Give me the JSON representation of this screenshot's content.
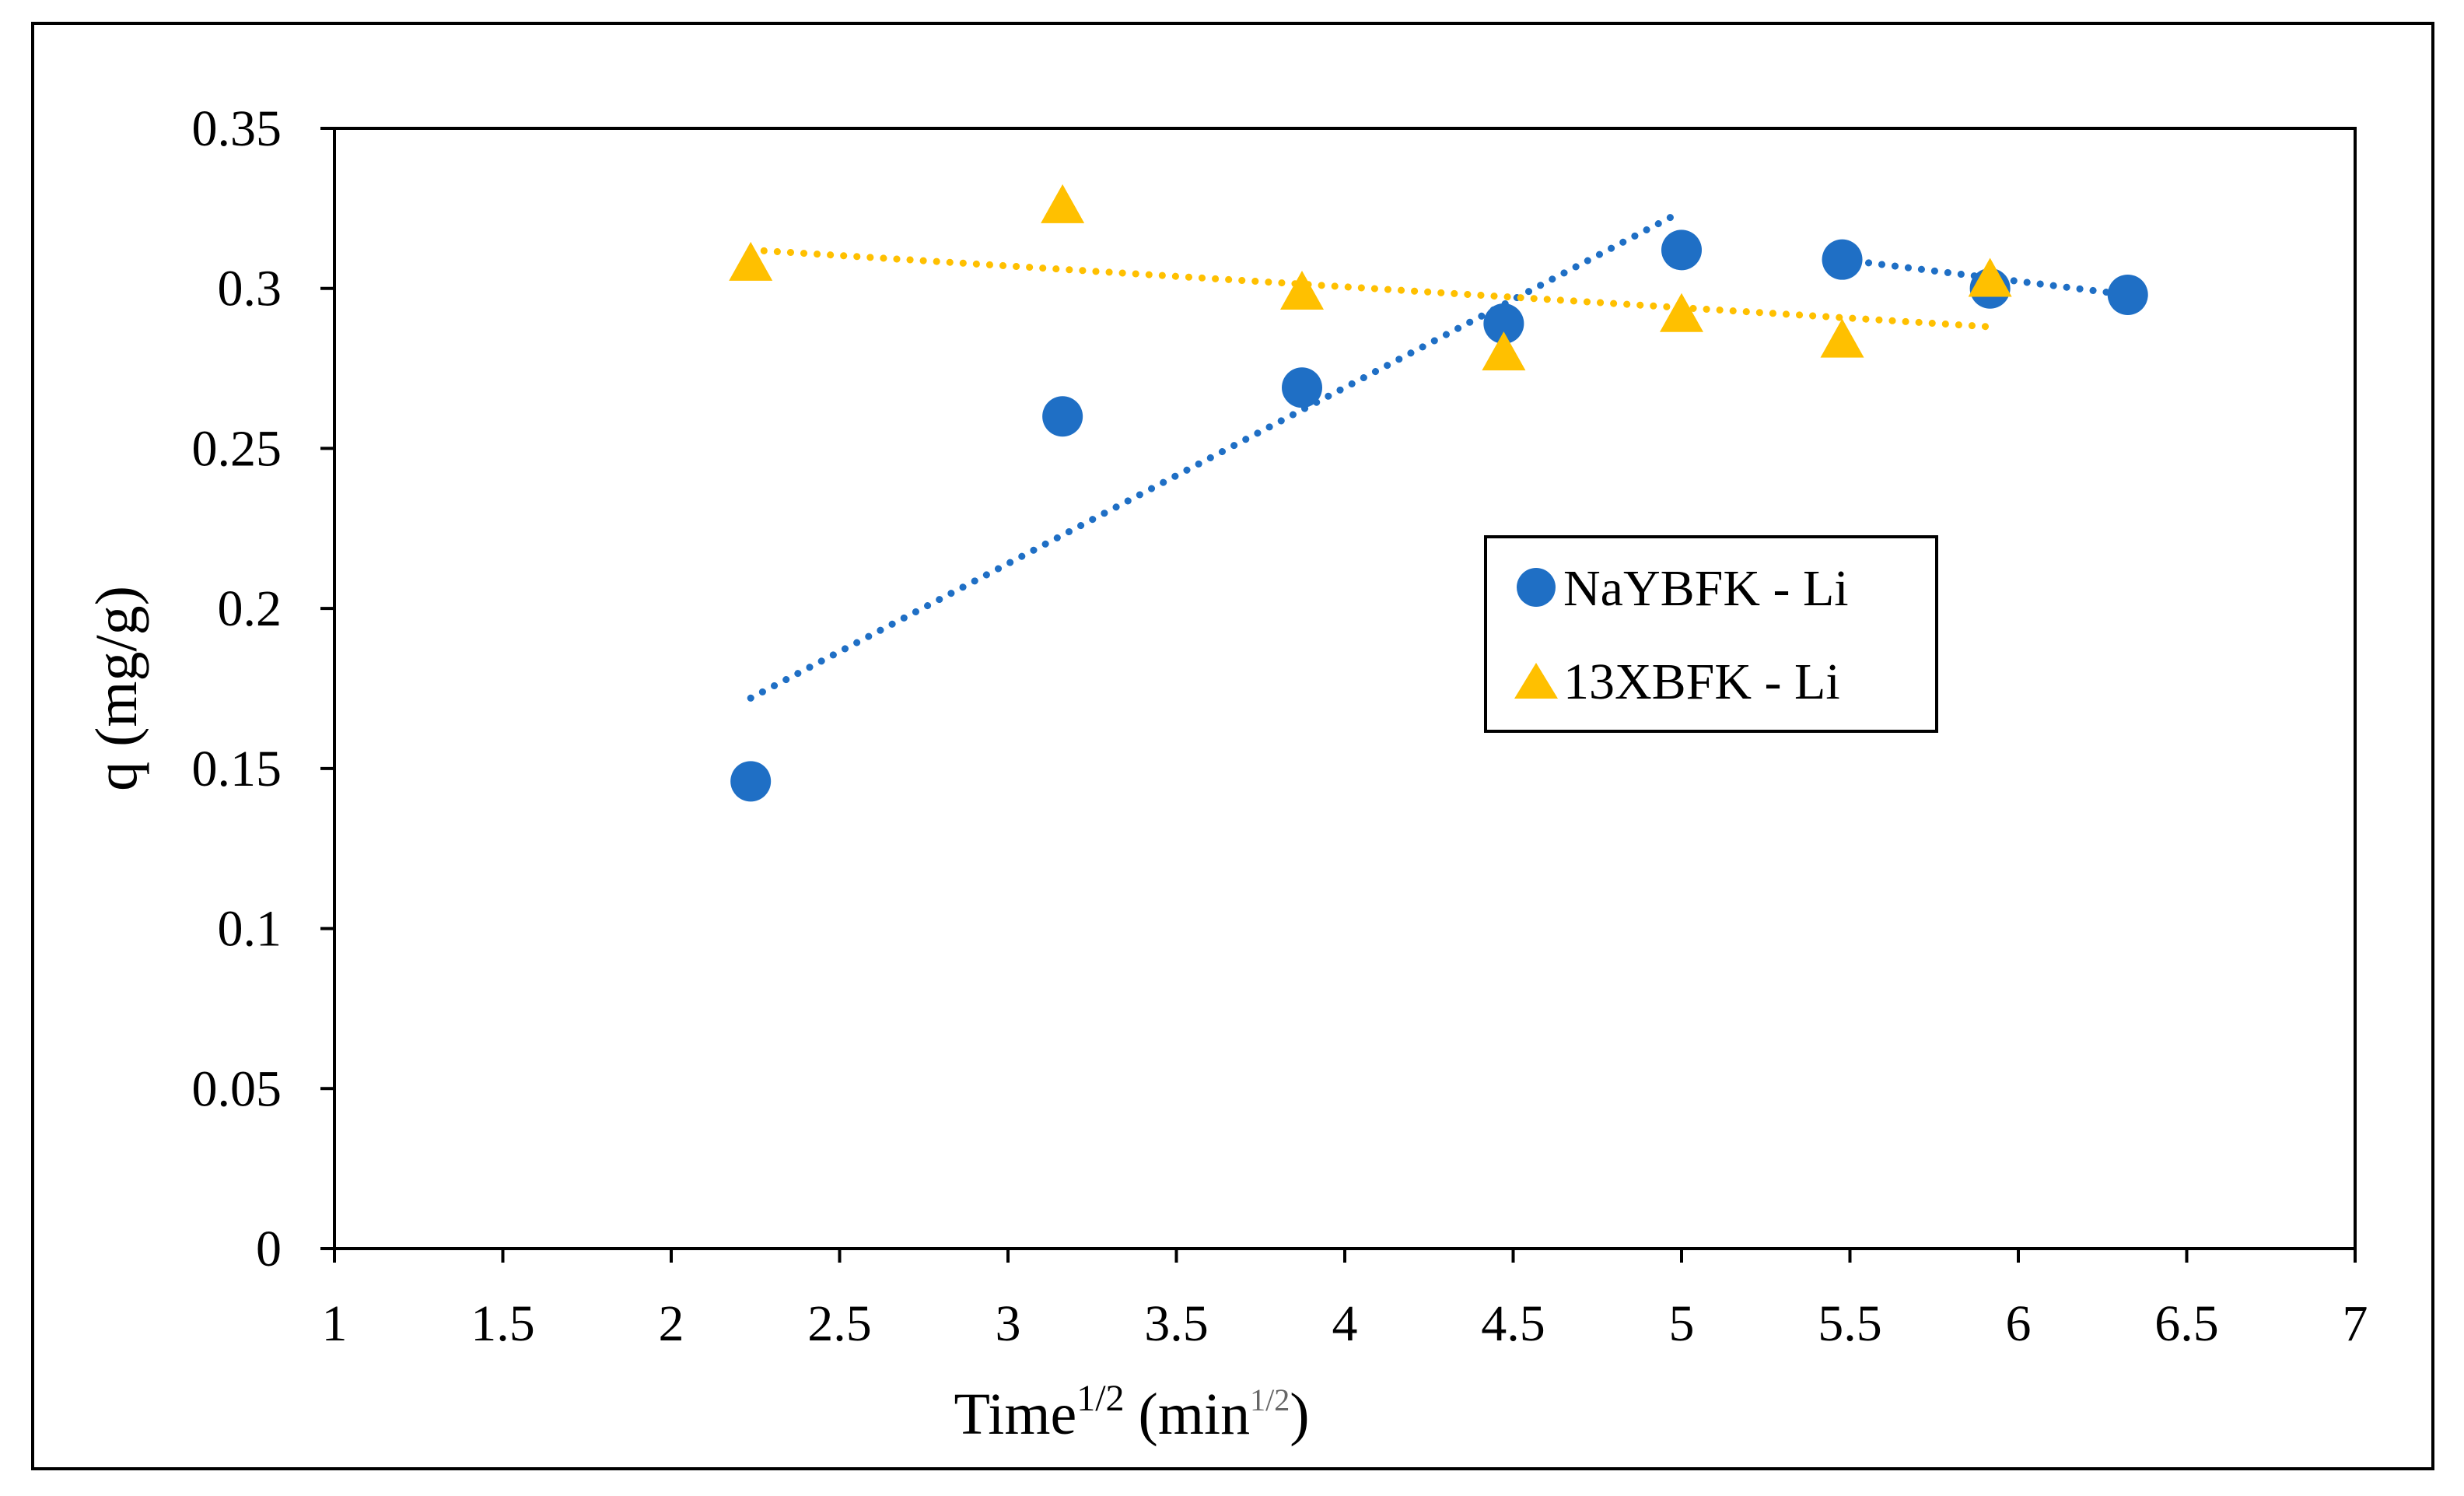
{
  "chart_data": {
    "type": "scatter",
    "title": "",
    "xlabel": {
      "main": "Time",
      "main_sup": "1/2",
      "unit_open": "(min",
      "unit_sup": "1/2",
      "unit_close": ")"
    },
    "ylabel": "q (mg/g)",
    "xlim": [
      1,
      7
    ],
    "ylim": [
      0,
      0.35
    ],
    "x_ticks": [
      "1",
      "1.5",
      "2",
      "2.5",
      "3",
      "3.5",
      "4",
      "4.5",
      "5",
      "5.5",
      "6",
      "6.5",
      "7"
    ],
    "y_ticks": [
      "0",
      "0.05",
      "0.1",
      "0.15",
      "0.2",
      "0.25",
      "0.3",
      "0.35"
    ],
    "grid": false,
    "legend_position": "center-right",
    "series": [
      {
        "name": "NaYBFK - Li",
        "marker": "circle",
        "color": "#1F6FC5",
        "x": [
          2.236,
          3.162,
          3.873,
          4.472,
          5.0,
          5.477,
          5.916,
          6.325
        ],
        "y": [
          0.146,
          0.26,
          0.269,
          0.289,
          0.312,
          0.309,
          0.3,
          0.298
        ],
        "trendlines": [
          {
            "style": "dotted",
            "x": [
              2.236,
              5.0
            ],
            "y": [
              0.172,
              0.324
            ]
          },
          {
            "style": "dotted",
            "x": [
              5.477,
              6.325
            ],
            "y": [
              0.309,
              0.298
            ]
          }
        ]
      },
      {
        "name": "13XBFK - Li",
        "marker": "triangle",
        "color": "#FFC000",
        "x": [
          2.236,
          3.162,
          3.873,
          4.472,
          5.0,
          5.477,
          5.916
        ],
        "y": [
          0.307,
          0.325,
          0.298,
          0.279,
          0.291,
          0.283,
          0.302
        ],
        "trendlines": [
          {
            "style": "dotted",
            "x": [
              2.236,
              5.916
            ],
            "y": [
              0.312,
              0.288
            ]
          }
        ]
      }
    ]
  }
}
